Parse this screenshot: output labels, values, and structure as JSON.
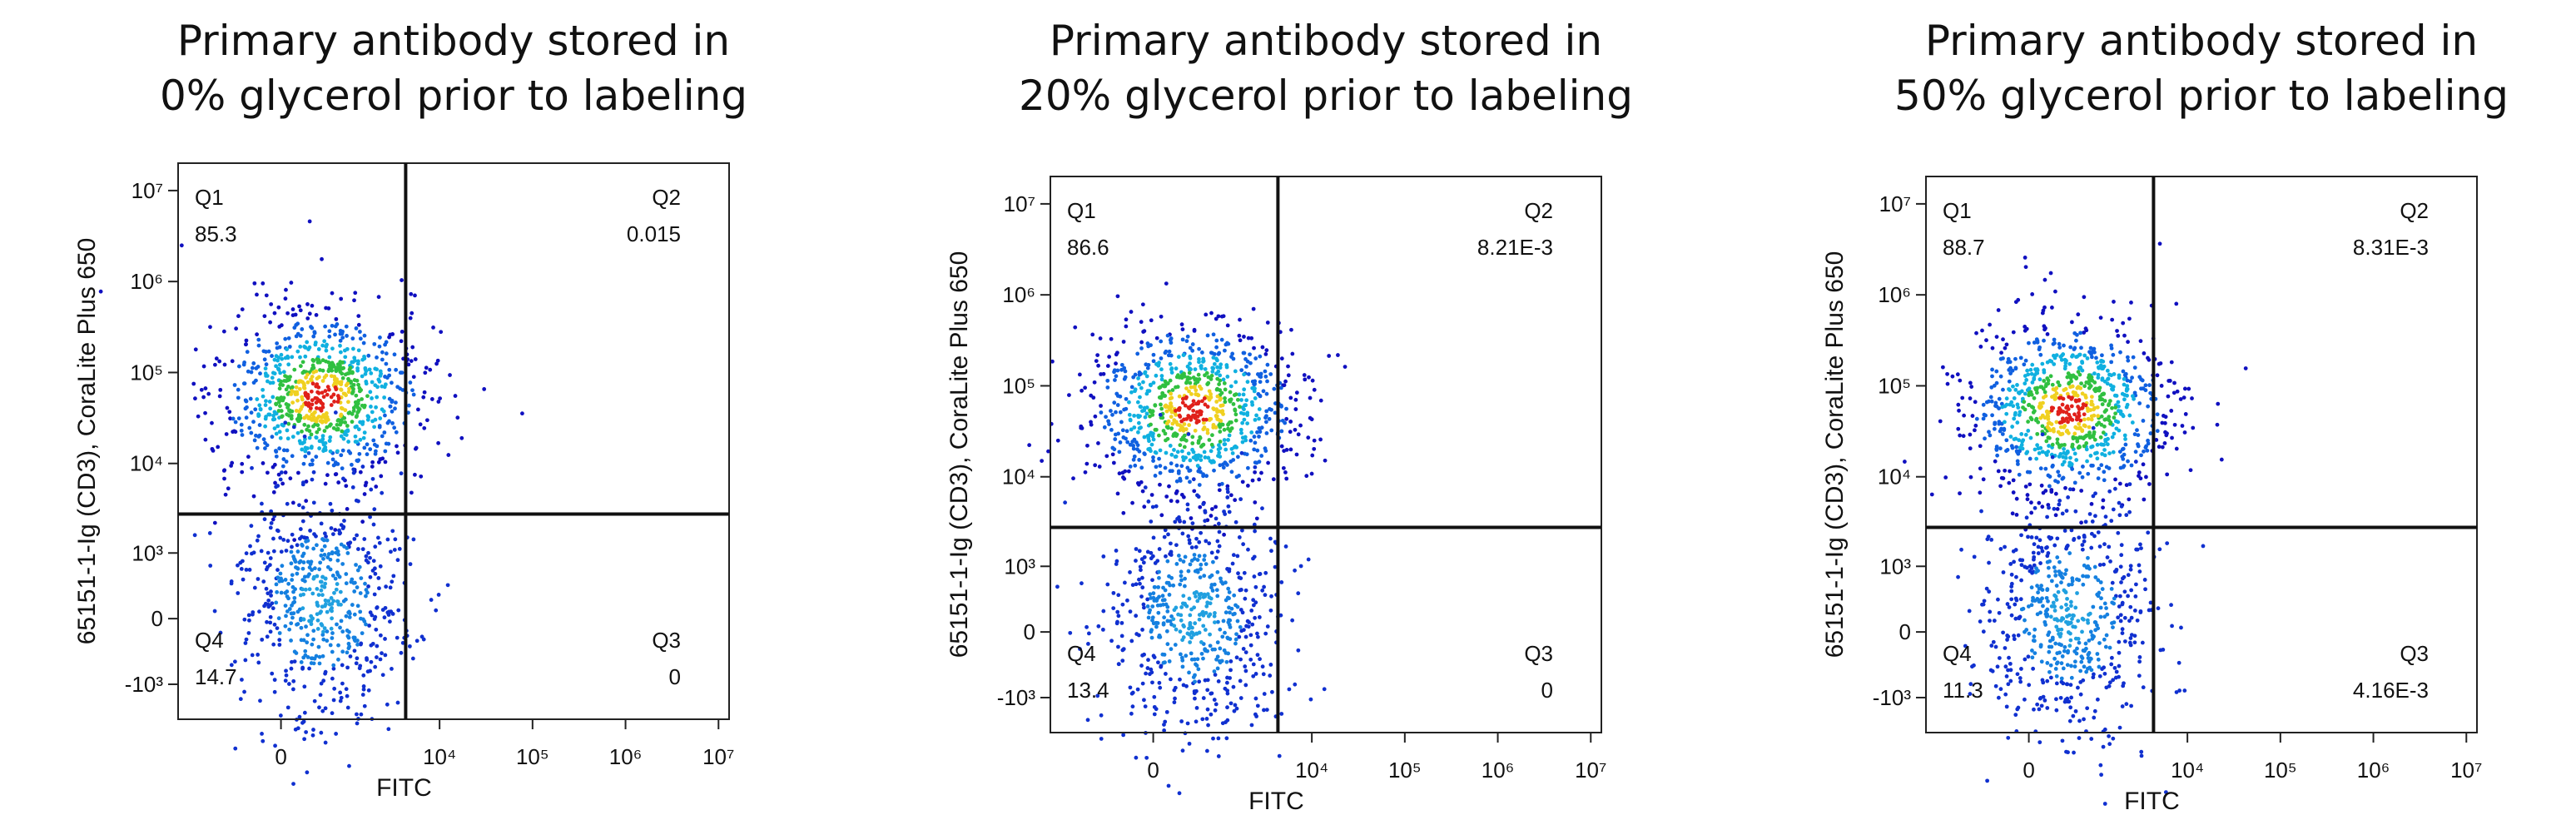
{
  "chart_data": [
    {
      "type": "scatter",
      "title": "Primary antibody stored in\n0% glycerol prior to labeling",
      "x_label": "FITC",
      "y_label": "65151-1-Ig (CD3), CoraLite Plus 650",
      "xlim": [
        -2500,
        13000000
      ],
      "ylim": [
        -2500,
        20000000
      ],
      "xticks": [
        0,
        {
          "value": 10000,
          "label": "10⁴"
        },
        {
          "value": 100000,
          "label": "10⁵"
        },
        {
          "value": 1000000,
          "label": "10⁶"
        },
        {
          "value": 10000000,
          "label": "10⁷"
        }
      ],
      "yticks": [
        {
          "value": 10000000,
          "label": "10⁷"
        },
        {
          "value": 1000000,
          "label": "10⁶"
        },
        {
          "value": 100000,
          "label": "10⁵"
        },
        {
          "value": 10000,
          "label": "10⁴"
        },
        {
          "value": 1000,
          "label": "10³"
        },
        0,
        {
          "value": -1000,
          "label": "-10³"
        }
      ],
      "categories": [
        "Q1",
        "Q2",
        "Q3",
        "Q4"
      ],
      "values": [
        85.3,
        0.015,
        0,
        14.7
      ],
      "value_labels": [
        "85.3",
        "0.015",
        "0",
        "14.7"
      ]
    },
    {
      "type": "scatter",
      "title": "Primary antibody stored in\n20% glycerol prior to labeling",
      "x_label": "FITC",
      "y_label": "65151-1-Ig (CD3), CoraLite Plus 650",
      "xlim": [
        -2500,
        13000000
      ],
      "ylim": [
        -2500,
        20000000
      ],
      "xticks": [
        0,
        {
          "value": 10000,
          "label": "10⁴"
        },
        {
          "value": 100000,
          "label": "10⁵"
        },
        {
          "value": 1000000,
          "label": "10⁶"
        },
        {
          "value": 10000000,
          "label": "10⁷"
        }
      ],
      "yticks": [
        {
          "value": 10000000,
          "label": "10⁷"
        },
        {
          "value": 1000000,
          "label": "10⁶"
        },
        {
          "value": 100000,
          "label": "10⁵"
        },
        {
          "value": 10000,
          "label": "10⁴"
        },
        {
          "value": 1000,
          "label": "10³"
        },
        0,
        {
          "value": -1000,
          "label": "-10³"
        }
      ],
      "categories": [
        "Q1",
        "Q2",
        "Q3",
        "Q4"
      ],
      "values": [
        86.6,
        0.00821,
        0,
        13.4
      ],
      "value_labels": [
        "86.6",
        "8.21E-3",
        "0",
        "13.4"
      ]
    },
    {
      "type": "scatter",
      "title": "Primary antibody stored in\n50% glycerol prior to labeling",
      "x_label": "FITC",
      "y_label": "65151-1-Ig (CD3), CoraLite Plus 650",
      "xlim": [
        -2500,
        13000000
      ],
      "ylim": [
        -2500,
        20000000
      ],
      "xticks": [
        0,
        {
          "value": 10000,
          "label": "10⁴"
        },
        {
          "value": 100000,
          "label": "10⁵"
        },
        {
          "value": 1000000,
          "label": "10⁶"
        },
        {
          "value": 10000000,
          "label": "10⁷"
        }
      ],
      "yticks": [
        {
          "value": 10000000,
          "label": "10⁷"
        },
        {
          "value": 1000000,
          "label": "10⁶"
        },
        {
          "value": 100000,
          "label": "10⁵"
        },
        {
          "value": 10000,
          "label": "10⁴"
        },
        {
          "value": 1000,
          "label": "10³"
        },
        0,
        {
          "value": -1000,
          "label": "-10³"
        }
      ],
      "categories": [
        "Q1",
        "Q2",
        "Q3",
        "Q4"
      ],
      "values": [
        88.7,
        0.00831,
        0.00416,
        11.3
      ],
      "value_labels": [
        "88.7",
        "8.31E-3",
        "4.16E-3",
        "11.3"
      ]
    }
  ]
}
